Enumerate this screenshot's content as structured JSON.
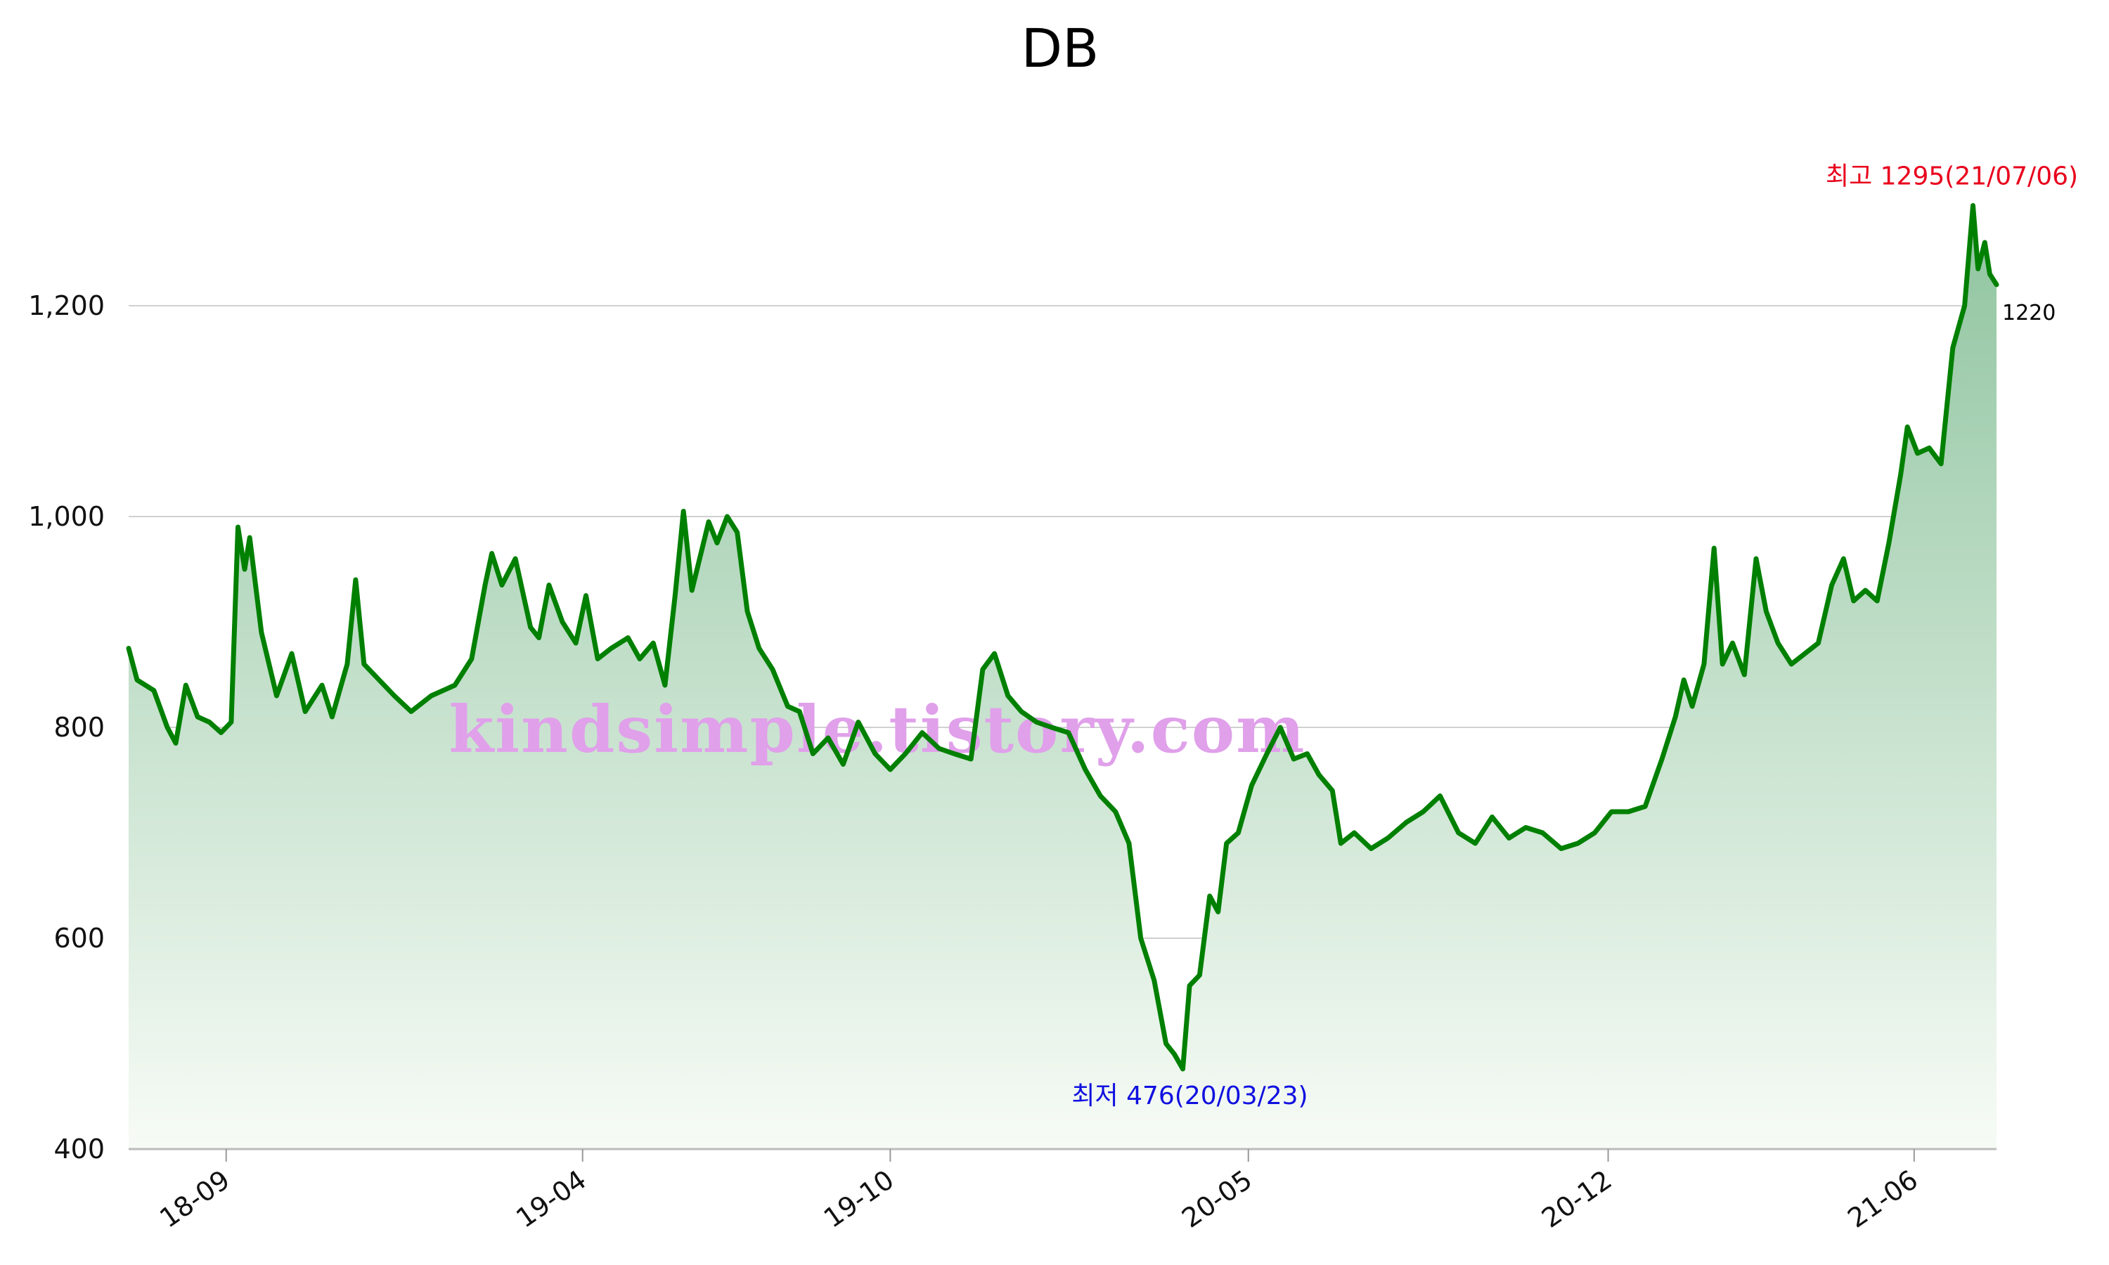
{
  "chart_data": {
    "type": "area",
    "title": "DB",
    "y_ticks": [
      "400",
      "600",
      "800",
      "1,000",
      "1,200"
    ],
    "y_tick_values": [
      400,
      600,
      800,
      1000,
      1200
    ],
    "ylim": [
      400,
      1390
    ],
    "x_ticks": [
      "18-09",
      "19-04",
      "19-10",
      "20-05",
      "20-12",
      "21-06"
    ],
    "x_tick_dates": [
      "2018-09-01",
      "2019-04-01",
      "2019-10-01",
      "2020-05-01",
      "2020-12-01",
      "2021-06-01"
    ],
    "x_start": "2018-07-05",
    "x_end": "2021-07-20",
    "grid": true,
    "line_color": "#008000",
    "fill_top_color": "#8fc49f",
    "fill_bottom_color": "#f7fbf6",
    "high_annotation": "최고 1295(21/07/06)",
    "low_annotation": "최저 476(20/03/23)",
    "last_value_label": "1220",
    "watermark": "kindsimple.tistory.com",
    "series": [
      {
        "points": [
          [
            "2018-07-05",
            875
          ],
          [
            "2018-07-10",
            845
          ],
          [
            "2018-07-20",
            835
          ],
          [
            "2018-07-28",
            800
          ],
          [
            "2018-08-02",
            785
          ],
          [
            "2018-08-08",
            840
          ],
          [
            "2018-08-15",
            810
          ],
          [
            "2018-08-22",
            805
          ],
          [
            "2018-08-29",
            795
          ],
          [
            "2018-09-04",
            805
          ],
          [
            "2018-09-08",
            990
          ],
          [
            "2018-09-12",
            950
          ],
          [
            "2018-09-15",
            980
          ],
          [
            "2018-09-22",
            890
          ],
          [
            "2018-10-01",
            830
          ],
          [
            "2018-10-10",
            870
          ],
          [
            "2018-10-18",
            815
          ],
          [
            "2018-10-28",
            840
          ],
          [
            "2018-11-03",
            810
          ],
          [
            "2018-11-12",
            860
          ],
          [
            "2018-11-17",
            940
          ],
          [
            "2018-11-22",
            860
          ],
          [
            "2018-12-01",
            845
          ],
          [
            "2018-12-10",
            830
          ],
          [
            "2018-12-20",
            815
          ],
          [
            "2019-01-01",
            830
          ],
          [
            "2019-01-15",
            840
          ],
          [
            "2019-01-25",
            865
          ],
          [
            "2019-02-02",
            935
          ],
          [
            "2019-02-06",
            965
          ],
          [
            "2019-02-12",
            935
          ],
          [
            "2019-02-20",
            960
          ],
          [
            "2019-03-01",
            895
          ],
          [
            "2019-03-06",
            885
          ],
          [
            "2019-03-12",
            935
          ],
          [
            "2019-03-20",
            900
          ],
          [
            "2019-03-28",
            880
          ],
          [
            "2019-04-03",
            925
          ],
          [
            "2019-04-10",
            865
          ],
          [
            "2019-04-18",
            875
          ],
          [
            "2019-04-28",
            885
          ],
          [
            "2019-05-05",
            865
          ],
          [
            "2019-05-13",
            880
          ],
          [
            "2019-05-20",
            840
          ],
          [
            "2019-05-26",
            925
          ],
          [
            "2019-05-31",
            1005
          ],
          [
            "2019-06-05",
            930
          ],
          [
            "2019-06-15",
            995
          ],
          [
            "2019-06-20",
            975
          ],
          [
            "2019-06-26",
            1000
          ],
          [
            "2019-07-02",
            985
          ],
          [
            "2019-07-08",
            910
          ],
          [
            "2019-07-15",
            875
          ],
          [
            "2019-07-23",
            855
          ],
          [
            "2019-08-01",
            820
          ],
          [
            "2019-08-08",
            815
          ],
          [
            "2019-08-16",
            775
          ],
          [
            "2019-08-25",
            790
          ],
          [
            "2019-09-03",
            765
          ],
          [
            "2019-09-12",
            805
          ],
          [
            "2019-09-22",
            775
          ],
          [
            "2019-10-01",
            760
          ],
          [
            "2019-10-10",
            775
          ],
          [
            "2019-10-20",
            795
          ],
          [
            "2019-10-30",
            780
          ],
          [
            "2019-11-08",
            775
          ],
          [
            "2019-11-18",
            770
          ],
          [
            "2019-11-25",
            855
          ],
          [
            "2019-12-02",
            870
          ],
          [
            "2019-12-10",
            830
          ],
          [
            "2019-12-18",
            815
          ],
          [
            "2019-12-27",
            805
          ],
          [
            "2020-01-05",
            800
          ],
          [
            "2020-01-15",
            795
          ],
          [
            "2020-01-25",
            760
          ],
          [
            "2020-02-03",
            735
          ],
          [
            "2020-02-12",
            720
          ],
          [
            "2020-02-20",
            690
          ],
          [
            "2020-02-27",
            600
          ],
          [
            "2020-03-06",
            560
          ],
          [
            "2020-03-13",
            500
          ],
          [
            "2020-03-18",
            490
          ],
          [
            "2020-03-23",
            476
          ],
          [
            "2020-03-27",
            555
          ],
          [
            "2020-04-02",
            565
          ],
          [
            "2020-04-08",
            640
          ],
          [
            "2020-04-13",
            625
          ],
          [
            "2020-04-18",
            690
          ],
          [
            "2020-04-25",
            700
          ],
          [
            "2020-05-03",
            745
          ],
          [
            "2020-05-12",
            775
          ],
          [
            "2020-05-20",
            800
          ],
          [
            "2020-05-28",
            770
          ],
          [
            "2020-06-05",
            775
          ],
          [
            "2020-06-12",
            755
          ],
          [
            "2020-06-20",
            740
          ],
          [
            "2020-06-25",
            690
          ],
          [
            "2020-07-03",
            700
          ],
          [
            "2020-07-13",
            685
          ],
          [
            "2020-07-23",
            695
          ],
          [
            "2020-08-03",
            710
          ],
          [
            "2020-08-13",
            720
          ],
          [
            "2020-08-23",
            735
          ],
          [
            "2020-09-03",
            700
          ],
          [
            "2020-09-13",
            690
          ],
          [
            "2020-09-23",
            715
          ],
          [
            "2020-10-03",
            695
          ],
          [
            "2020-10-13",
            705
          ],
          [
            "2020-10-23",
            700
          ],
          [
            "2020-11-03",
            685
          ],
          [
            "2020-11-13",
            690
          ],
          [
            "2020-11-23",
            700
          ],
          [
            "2020-12-03",
            720
          ],
          [
            "2020-12-13",
            720
          ],
          [
            "2020-12-23",
            725
          ],
          [
            "2021-01-02",
            770
          ],
          [
            "2021-01-10",
            810
          ],
          [
            "2021-01-15",
            845
          ],
          [
            "2021-01-20",
            820
          ],
          [
            "2021-01-27",
            860
          ],
          [
            "2021-02-02",
            970
          ],
          [
            "2021-02-07",
            860
          ],
          [
            "2021-02-13",
            880
          ],
          [
            "2021-02-20",
            850
          ],
          [
            "2021-02-27",
            960
          ],
          [
            "2021-03-05",
            910
          ],
          [
            "2021-03-12",
            880
          ],
          [
            "2021-03-20",
            860
          ],
          [
            "2021-03-28",
            870
          ],
          [
            "2021-04-05",
            880
          ],
          [
            "2021-04-13",
            935
          ],
          [
            "2021-04-20",
            960
          ],
          [
            "2021-04-26",
            920
          ],
          [
            "2021-05-03",
            930
          ],
          [
            "2021-05-10",
            920
          ],
          [
            "2021-05-17",
            975
          ],
          [
            "2021-05-24",
            1040
          ],
          [
            "2021-05-28",
            1085
          ],
          [
            "2021-06-03",
            1060
          ],
          [
            "2021-06-10",
            1065
          ],
          [
            "2021-06-17",
            1050
          ],
          [
            "2021-06-24",
            1160
          ],
          [
            "2021-07-01",
            1200
          ],
          [
            "2021-07-06",
            1295
          ],
          [
            "2021-07-09",
            1235
          ],
          [
            "2021-07-13",
            1260
          ],
          [
            "2021-07-16",
            1230
          ],
          [
            "2021-07-20",
            1220
          ]
        ]
      }
    ]
  }
}
